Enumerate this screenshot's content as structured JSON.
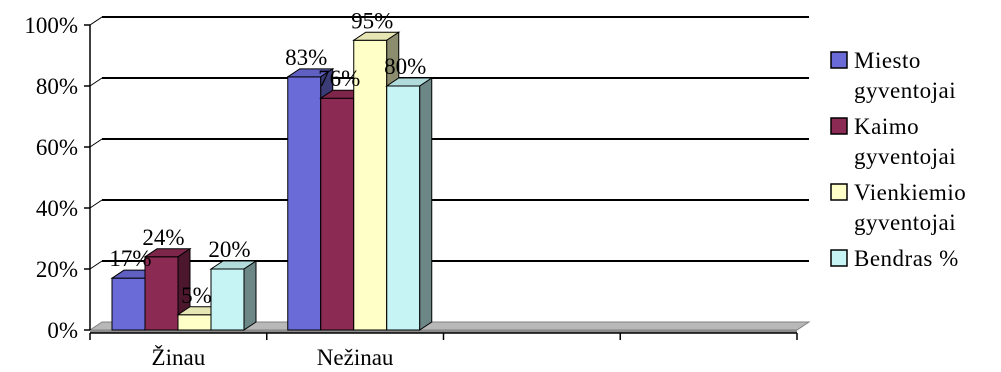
{
  "chart_data": {
    "type": "bar",
    "style": "3d-clustered-column",
    "categories": [
      "Žinau",
      "Nežinau",
      "",
      ""
    ],
    "series": [
      {
        "name": "Miesto gyventojai",
        "legend_lines": [
          "Miesto",
          "gyventojai"
        ],
        "color": "#6B6BD8",
        "values": [
          17,
          83,
          null,
          null
        ],
        "labels": [
          "17%",
          "83%",
          "",
          ""
        ]
      },
      {
        "name": "Kaimo gyventojai",
        "legend_lines": [
          "Kaimo",
          "gyventojai"
        ],
        "color": "#8B2A52",
        "values": [
          24,
          76,
          null,
          null
        ],
        "labels": [
          "24%",
          "76%",
          "",
          ""
        ]
      },
      {
        "name": "Vienkiemio gyventojai",
        "legend_lines": [
          "Vienkiemio",
          "gyventojai"
        ],
        "color": "#FFFFC8",
        "values": [
          5,
          95,
          null,
          null
        ],
        "labels": [
          "5%",
          "95%",
          "",
          ""
        ]
      },
      {
        "name": "Bendras %",
        "legend_lines": [
          "Bendras %"
        ],
        "color": "#C6F4F4",
        "values": [
          20,
          80,
          null,
          null
        ],
        "labels": [
          "20%",
          "80%",
          "",
          ""
        ]
      }
    ],
    "yticks": [
      "0%",
      "20%",
      "40%",
      "60%",
      "80%",
      "100%"
    ],
    "ylim": [
      0,
      100
    ],
    "title": "",
    "xlabel": "",
    "ylabel": "",
    "grid": true,
    "legend_position": "right"
  }
}
